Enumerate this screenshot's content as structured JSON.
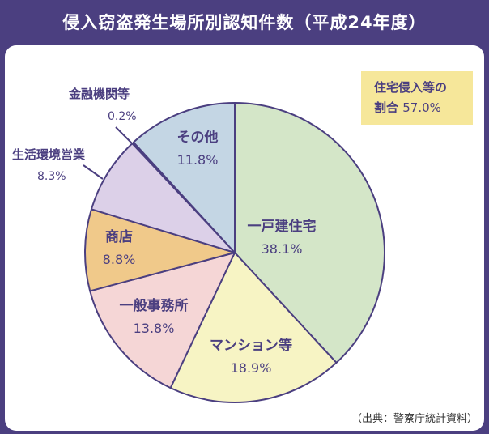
{
  "title": "侵入窃盗発生場所別認知件数（平成24年度）",
  "callout": {
    "line1": "住宅侵入等の",
    "line2_label": "割合",
    "line2_value": "57.0%"
  },
  "source": "（出典：警察庁統計資料）",
  "colors": {
    "frame": "#4b3f80",
    "text": "#4b3f80",
    "callout_bg": "#f6e79a",
    "stroke": "#4b3f80"
  },
  "chart_data": {
    "type": "pie",
    "title": "侵入窃盗発生場所別認知件数（平成24年度）",
    "start": "12 o'clock, clockwise",
    "slices": [
      {
        "name": "一戸建住宅",
        "value": 38.1,
        "label": "38.1%",
        "color": "#d4e6c8"
      },
      {
        "name": "マンション等",
        "value": 18.9,
        "label": "18.9%",
        "color": "#f7f4c4"
      },
      {
        "name": "一般事務所",
        "value": 13.8,
        "label": "13.8%",
        "color": "#f5d6d6"
      },
      {
        "name": "商店",
        "value": 8.8,
        "label": "8.8%",
        "color": "#f0c98a"
      },
      {
        "name": "生活環境営業",
        "value": 8.3,
        "label": "8.3%",
        "color": "#dcd0e8"
      },
      {
        "name": "金融機関等",
        "value": 0.2,
        "label": "0.2%",
        "color": "#4b3f80"
      },
      {
        "name": "その他",
        "value": 11.8,
        "label": "11.8%",
        "color": "#c4d6e4"
      }
    ]
  }
}
